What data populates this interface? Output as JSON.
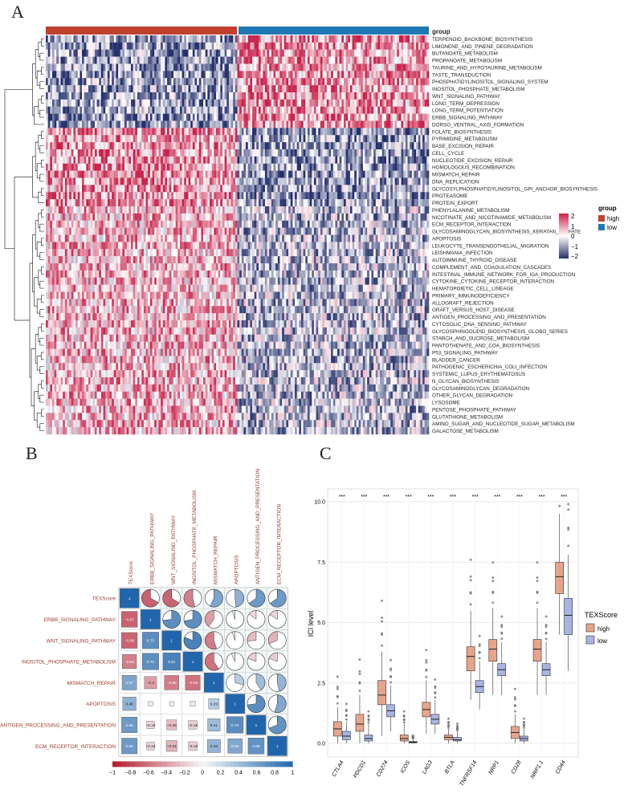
{
  "figure": {
    "panels": [
      {
        "letter": "A"
      },
      {
        "letter": "B"
      },
      {
        "letter": "C"
      }
    ]
  },
  "heatmap": {
    "annotation_label": "group",
    "legend_title": "group",
    "groups": [
      {
        "name": "high",
        "color": "#c0402c"
      },
      {
        "name": "low",
        "color": "#1f78b4"
      }
    ],
    "scale_ticks": [
      "2",
      "1",
      "0",
      "−1",
      "−2"
    ],
    "colors": {
      "high": "#c8214a",
      "mid": "#ffffff",
      "low": "#24306b"
    },
    "pathways": [
      "TERPENOID_BACKBONE_BIOSYNTHESIS",
      "LIMONENE_AND_PINENE_DEGRADATION",
      "BUTANOATE_METABOLISM",
      "PROPANOATE_METABOLISM",
      "TAURINE_AND_HYPOTAURINE_METABOLISM",
      "TASTE_TRANSDUCTION",
      "PHOSPHATIDYLINOSITOL_SIGNALING_SYSTEM",
      "INOSITOL_PHOSPHATE_METABOLISM",
      "WNT_SIGNALING_PATHWAY",
      "LONG_TERM_DEPRESSION",
      "LONG_TERM_POTENTIATION",
      "ERBB_SIGNALING_PATHWAY",
      "DORSO_VENTRAL_AXIS_FORMATION",
      "FOLATE_BIOSYNTHESIS",
      "PYRIMIDINE_METABOLISM",
      "BASE_EXCISION_REPAIR",
      "CELL_CYCLE",
      "NUCLEOTIDE_EXCISION_REPAIR",
      "HOMOLOGOUS_RECOMBINATION",
      "MISMATCH_REPAIR",
      "DNA_REPLICATION",
      "GLYCOSYLPHOSPHATIDYLINOSITOL_GPI_ANCHOR_BIOSYNTHESIS",
      "PROTEASOME",
      "PROTEIN_EXPORT",
      "PHENYLALANINE_METABOLISM",
      "NICOTINATE_AND_NICOTINAMIDE_METABOLISM",
      "ECM_RECEPTOR_INTERACTION",
      "GLYCOSAMINOGLYCAN_BIOSYNTHESIS_KERATAN_SULFATE",
      "APOPTOSIS",
      "LEUKOCYTE_TRANSENDOTHELIAL_MIGRATION",
      "LEISHMANIA_INFECTION",
      "AUTOIMMUNE_THYROID_DISEASE",
      "COMPLEMENT_AND_COAGULATION_CASCADES",
      "INTESTINAL_IMMUNE_NETWORK_FOR_IGA_PRODUCTION",
      "CYTOKINE_CYTOKINE_RECEPTOR_INTERACTION",
      "HEMATOPOIETIC_CELL_LINEAGE",
      "PRIMARY_IMMUNODEFICIENCY",
      "ALLOGRAFT_REJECTION",
      "GRAFT_VERSUS_HOST_DISEASE",
      "ANTIGEN_PROCESSING_AND_PRESENTATION",
      "CYTOSOLIC_DNA_SENSING_PATHWAY",
      "GLYCOSPHINGOLIPID_BIOSYNTHESIS_GLOBO_SERIES",
      "STARCH_AND_SUCROSE_METABOLISM",
      "PANTOTHENATE_AND_COA_BIOSYNTHESIS",
      "P53_SIGNALING_PATHWAY",
      "BLADDER_CANCER",
      "PATHOGENIC_ESCHERICHIA_COLI_INFECTION",
      "SYSTEMIC_LUPUS_ERYTHEMATOSUS",
      "N_GLYCAN_BIOSYNTHESIS",
      "GLYCOSAMINOGLYCAN_DEGRADATION",
      "OTHER_GLYCAN_DEGRADATION",
      "LYSOSOME",
      "PENTOSE_PHOSPHATE_PATHWAY",
      "GLUTATHIONE_METABOLISM",
      "AMINO_SUGAR_AND_NUCLEOTIDE_SUGAR_METABOLISM",
      "GALACTOSE_METABOLISM"
    ],
    "row_trend": [
      -1,
      -1,
      -1,
      -1,
      -1,
      -1,
      -1,
      -1,
      -1,
      -1,
      -1,
      -1,
      -1,
      1,
      1,
      1,
      1,
      1,
      1,
      1,
      1,
      1,
      1,
      1,
      0.7,
      0.7,
      0.7,
      0.7,
      0.7,
      0.7,
      0.7,
      0.7,
      0.7,
      0.7,
      0.7,
      0.7,
      0.7,
      0.7,
      0.7,
      0.7,
      0.7,
      0.7,
      0.7,
      0.7,
      0.7,
      0.7,
      0.7,
      0.7,
      0.7,
      0.7,
      0.7,
      0.7,
      0.7,
      0.7,
      0.7,
      0.7
    ]
  },
  "correlation": {
    "variables": [
      "TEXScore",
      "ERBB_SIGNALING_PATHWAY",
      "WNT_SIGNALING_PATHWAY",
      "INOSITOL_PHOSPHATE_METABOLISM",
      "MISMATCH_REPAIR",
      "APOPTOSIS",
      "ANTIGEN_PROCESSING_AND_PRESENTATION",
      "ECM_RECEPTOR_INTERACTION"
    ],
    "matrix": [
      [
        1,
        -0.67,
        -0.66,
        -0.54,
        0.57,
        0.48,
        0.65,
        0.65
      ],
      [
        -0.67,
        1,
        0.73,
        0.72,
        -0.4,
        -0.05,
        -0.15,
        -0.16
      ],
      [
        -0.66,
        0.73,
        1,
        0.81,
        -0.55,
        -0.05,
        -0.26,
        -0.31
      ],
      [
        -0.54,
        0.72,
        0.81,
        1,
        -0.59,
        -0.07,
        -0.19,
        -0.19
      ],
      [
        0.57,
        -0.4,
        -0.55,
        -0.59,
        1,
        0.29,
        0.41,
        0.46
      ],
      [
        0.48,
        -0.05,
        -0.05,
        -0.07,
        0.29,
        1,
        0.73,
        0.55
      ],
      [
        0.65,
        -0.15,
        -0.26,
        -0.19,
        0.41,
        0.73,
        1,
        0.69
      ],
      [
        0.65,
        -0.16,
        -0.31,
        -0.19,
        0.46,
        0.55,
        0.69,
        1
      ]
    ],
    "lower_labels": [
      [
        "1"
      ],
      [
        "−0.67",
        "1"
      ],
      [
        "−0.66",
        "0.73",
        "1"
      ],
      [
        "−0.54",
        "0.72",
        "0.81",
        "1"
      ],
      [
        "0.57",
        "−0.4",
        "−0.55",
        "−0.59",
        "1"
      ],
      [
        "0.48",
        "",
        "",
        "",
        "0.29",
        "1"
      ],
      [
        "0.65",
        "−0.15",
        "−0.26",
        "−0.19",
        "0.41",
        "0.73",
        "1"
      ],
      [
        "0.65",
        "−0.16",
        "−0.31",
        "−0.19",
        "0.46",
        "0.55",
        "0.69",
        "1"
      ]
    ],
    "colorbar_ticks": [
      "−1",
      "−0.8",
      "−0.6",
      "−0.4",
      "−0.2",
      "0",
      "0.2",
      "0.4",
      "0.6",
      "0.8",
      "1"
    ],
    "colors": {
      "neg": "#b2182b",
      "pos": "#2166ac"
    }
  },
  "chart_data": {
    "type": "box",
    "ylabel": "ICI level",
    "ylim": [
      0,
      10
    ],
    "yticks": [
      "0.0",
      "2.5",
      "5.0",
      "7.5",
      "10.0"
    ],
    "legend_title": "TEXScore",
    "significance": "***",
    "categories": [
      "CTLA4",
      "PDCD1",
      "CD274",
      "ICOS",
      "LAG3",
      "BTLA",
      "TNFRSF14",
      "NRP1",
      "CD28",
      "NRP1.1",
      "CD44"
    ],
    "series": [
      {
        "name": "high",
        "color": "#e8a48a",
        "boxes": [
          {
            "q1": 0.3,
            "med": 0.6,
            "q3": 0.9,
            "lo": 0,
            "hi": 1.5
          },
          {
            "q1": 0.5,
            "med": 0.8,
            "q3": 1.2,
            "lo": 0,
            "hi": 2.0
          },
          {
            "q1": 1.6,
            "med": 2.0,
            "q3": 2.6,
            "lo": 0.3,
            "hi": 3.8
          },
          {
            "q1": 0.1,
            "med": 0.2,
            "q3": 0.35,
            "lo": 0,
            "hi": 0.8
          },
          {
            "q1": 1.1,
            "med": 1.4,
            "q3": 1.7,
            "lo": 0.4,
            "hi": 2.6
          },
          {
            "q1": 0.15,
            "med": 0.25,
            "q3": 0.35,
            "lo": 0,
            "hi": 0.6
          },
          {
            "q1": 3.0,
            "med": 3.6,
            "q3": 4.0,
            "lo": 1.8,
            "hi": 5.5
          },
          {
            "q1": 3.4,
            "med": 3.9,
            "q3": 4.3,
            "lo": 2.0,
            "hi": 5.6
          },
          {
            "q1": 0.2,
            "med": 0.45,
            "q3": 0.7,
            "lo": 0,
            "hi": 1.2
          },
          {
            "q1": 3.4,
            "med": 3.9,
            "q3": 4.3,
            "lo": 2.0,
            "hi": 5.6
          },
          {
            "q1": 6.2,
            "med": 6.9,
            "q3": 7.5,
            "lo": 4.5,
            "hi": 9.5
          }
        ]
      },
      {
        "name": "low",
        "color": "#a8b4e2",
        "boxes": [
          {
            "q1": 0.15,
            "med": 0.3,
            "q3": 0.5,
            "lo": 0,
            "hi": 0.9
          },
          {
            "q1": 0.1,
            "med": 0.2,
            "q3": 0.35,
            "lo": 0,
            "hi": 0.8
          },
          {
            "q1": 1.1,
            "med": 1.35,
            "q3": 1.6,
            "lo": 0.5,
            "hi": 2.4
          },
          {
            "q1": 0.02,
            "med": 0.05,
            "q3": 0.08,
            "lo": 0,
            "hi": 0.2
          },
          {
            "q1": 0.8,
            "med": 1.0,
            "q3": 1.2,
            "lo": 0.4,
            "hi": 1.8
          },
          {
            "q1": 0.1,
            "med": 0.15,
            "q3": 0.25,
            "lo": 0,
            "hi": 0.5
          },
          {
            "q1": 2.1,
            "med": 2.35,
            "q3": 2.6,
            "lo": 1.4,
            "hi": 3.4
          },
          {
            "q1": 2.8,
            "med": 3.05,
            "q3": 3.3,
            "lo": 2.0,
            "hi": 4.2
          },
          {
            "q1": 0.1,
            "med": 0.2,
            "q3": 0.3,
            "lo": 0,
            "hi": 0.6
          },
          {
            "q1": 2.8,
            "med": 3.05,
            "q3": 3.3,
            "lo": 2.0,
            "hi": 4.2
          },
          {
            "q1": 4.5,
            "med": 5.3,
            "q3": 6.0,
            "lo": 3.0,
            "hi": 7.8
          }
        ]
      }
    ]
  }
}
